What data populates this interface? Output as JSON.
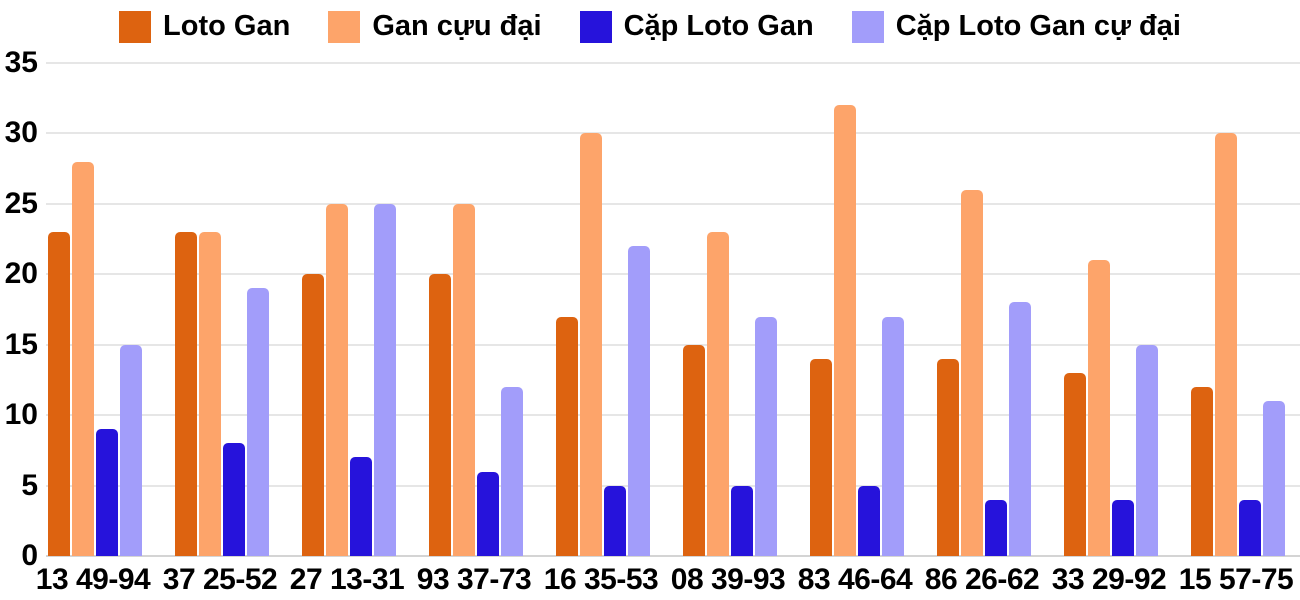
{
  "chart_data": {
    "type": "bar",
    "title": "",
    "xlabel": "",
    "ylabel": "",
    "ylim": [
      0,
      35
    ],
    "yticks": [
      0,
      5,
      10,
      15,
      20,
      25,
      30,
      35
    ],
    "grid": true,
    "legend_position": "top",
    "categories": [
      "13 49-94",
      "37 25-52",
      "27 13-31",
      "93 37-73",
      "16 35-53",
      "08 39-93",
      "83 46-64",
      "86 26-62",
      "33 29-92",
      "15 57-75"
    ],
    "series": [
      {
        "name": "Loto Gan",
        "color": "#dd6310",
        "values": [
          23,
          23,
          20,
          20,
          17,
          15,
          14,
          14,
          13,
          12
        ]
      },
      {
        "name": "Gan cựu đại",
        "color": "#fda46a",
        "values": [
          28,
          23,
          25,
          25,
          30,
          23,
          32,
          26,
          21,
          30
        ]
      },
      {
        "name": "Cặp Loto Gan",
        "color": "#2613db",
        "values": [
          9,
          8,
          7,
          6,
          5,
          5,
          5,
          4,
          4,
          4
        ]
      },
      {
        "name": "Cặp Loto Gan cự đại",
        "color": "#a29dfa",
        "values": [
          15,
          19,
          25,
          12,
          22,
          17,
          17,
          18,
          15,
          11
        ]
      }
    ],
    "colors": {
      "background": "#ffffff",
      "gridline": "#e6e6e6",
      "baseline": "#d4d4d4",
      "text": "#000000"
    }
  }
}
